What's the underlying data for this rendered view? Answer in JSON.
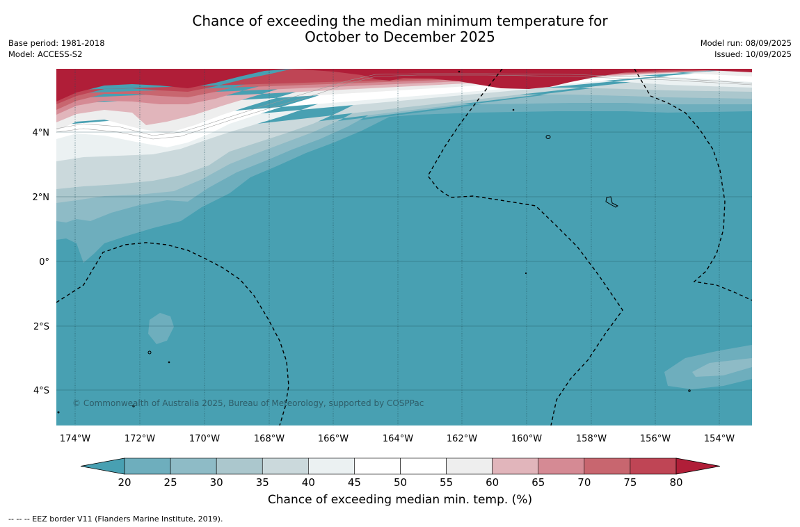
{
  "title": {
    "line1": "Chance of exceeding the median minimum temperature for",
    "line2": "October to December 2025"
  },
  "meta_left": {
    "base_period": "Base period: 1981-2018",
    "model": "Model: ACCESS-S2"
  },
  "meta_right": {
    "model_run": "Model run: 08/09/2025",
    "issued": "Issued: 10/09/2025"
  },
  "copyright": "© Commonwealth of Australia 2025, Bureau of Meteorology, supported by COSPPac",
  "lon_labels": [
    "174°W",
    "172°W",
    "170°W",
    "168°W",
    "166°W",
    "164°W",
    "162°W",
    "160°W",
    "158°W",
    "156°W",
    "154°W"
  ],
  "lat_labels": [
    "4°N",
    "2°N",
    "0°",
    "2°S",
    "4°S"
  ],
  "colorbar": {
    "ticks": [
      "20",
      "25",
      "30",
      "35",
      "40",
      "45",
      "50",
      "55",
      "60",
      "65",
      "70",
      "75",
      "80"
    ],
    "label": "Chance of exceeding median min. temp. (%)",
    "colors": {
      "under20": "#48a0b2",
      "bins": [
        "#6eaebd",
        "#8ebbc6",
        "#abc7cd",
        "#cbd9dc",
        "#ebf1f2",
        "#ffffff",
        "#ffffff",
        "#eeeeee",
        "#e1b5bb",
        "#d58a94",
        "#c8666f",
        "#bf4555"
      ],
      "over80": "#b01e38"
    }
  },
  "legend_note": "--  --  -- EEZ border V11 (Flanders Marine Institute, 2019)."
}
